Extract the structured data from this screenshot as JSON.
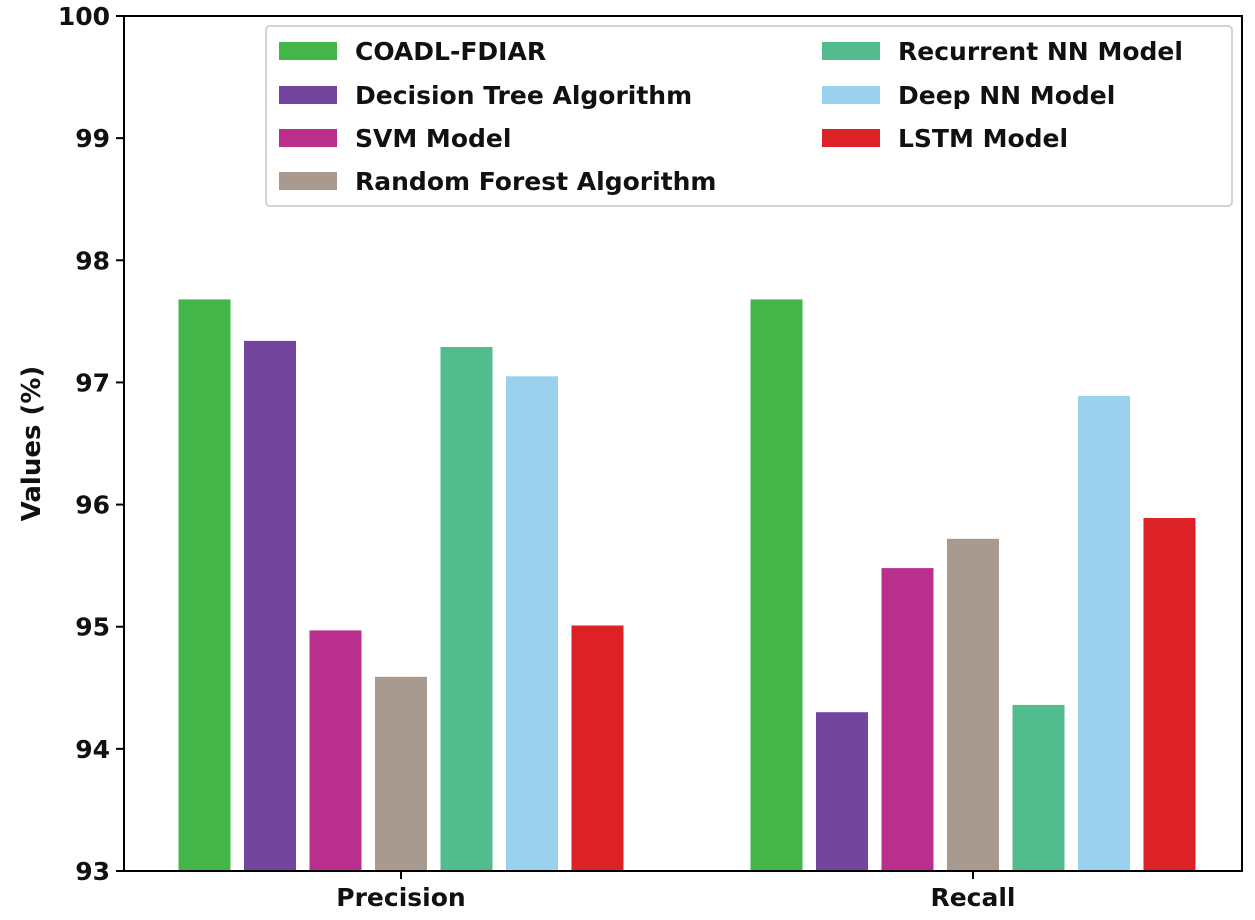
{
  "chart_data": {
    "type": "bar",
    "title": "",
    "xlabel": "",
    "ylabel": "Values (%)",
    "ylim": [
      93,
      100
    ],
    "yticks": [
      93,
      94,
      95,
      96,
      97,
      98,
      99,
      100
    ],
    "categories": [
      "Precision",
      "Recall"
    ],
    "grid": false,
    "legend_position": "top-right",
    "legend_columns": 2,
    "series": [
      {
        "name": "COADL-FDIAR",
        "color": "#44b649",
        "values": [
          97.68,
          97.68
        ]
      },
      {
        "name": "Decision Tree Algorithm",
        "color": "#73459c",
        "values": [
          97.34,
          94.3
        ]
      },
      {
        "name": "SVM Model",
        "color": "#ba2f8b",
        "values": [
          94.97,
          95.48
        ]
      },
      {
        "name": "Random Forest Algorithm",
        "color": "#a89a8e",
        "values": [
          94.59,
          95.72
        ]
      },
      {
        "name": "Recurrent NN Model",
        "color": "#52bc8e",
        "values": [
          97.29,
          94.36
        ]
      },
      {
        "name": "Deep NN Model",
        "color": "#9ad2ee",
        "values": [
          97.05,
          96.89
        ]
      },
      {
        "name": "LSTM Model",
        "color": "#dc2227",
        "values": [
          95.01,
          95.89
        ]
      }
    ]
  }
}
